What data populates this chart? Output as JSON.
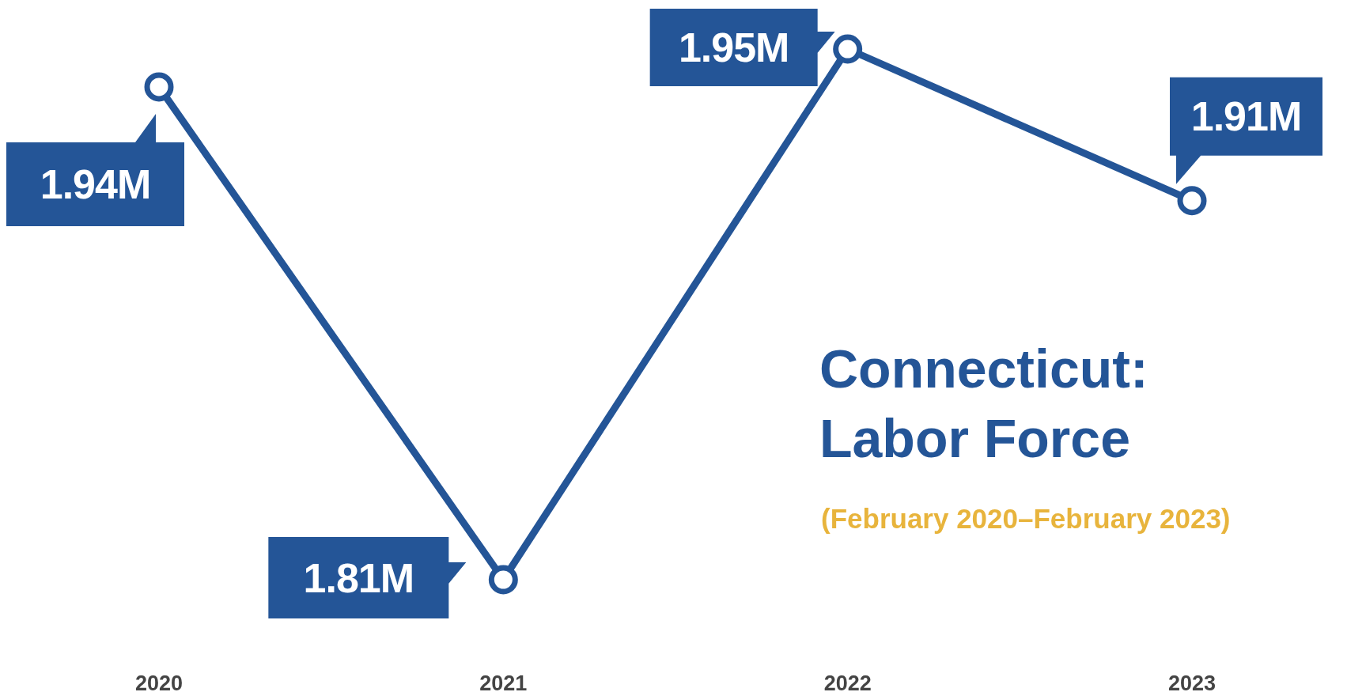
{
  "chart_data": {
    "type": "line",
    "title": "Connecticut: Labor Force",
    "subtitle": "(February 2020–February 2023)",
    "categories": [
      "2020",
      "2021",
      "2022",
      "2023"
    ],
    "series": [
      {
        "color": "#245597",
        "values": [
          1.94,
          1.81,
          1.95,
          1.91
        ],
        "value_labels": [
          "1.94M",
          "1.81M",
          "1.95M",
          "1.91M"
        ]
      }
    ],
    "marker": "circle",
    "line_style": "solid"
  }
}
